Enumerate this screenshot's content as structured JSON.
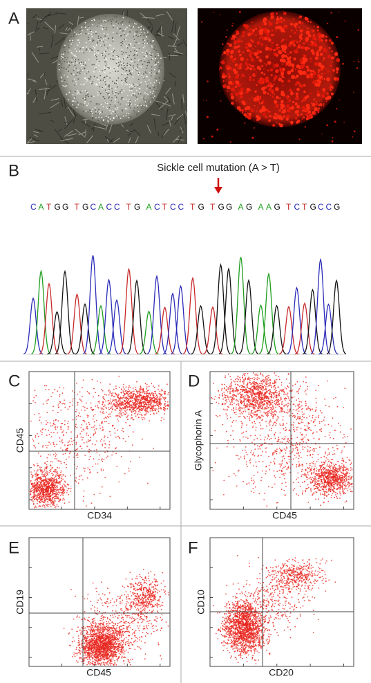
{
  "panels": {
    "A": {
      "label": "A"
    },
    "B": {
      "label": "B",
      "annotation": "Sickle cell mutation (A > T)",
      "sequence": [
        "CATGG",
        "TGCACC",
        "TG",
        "ACTCC",
        "TG",
        "TGG",
        "AG",
        "AAG",
        "TCTGCCG"
      ]
    },
    "C": {
      "label": "C",
      "x_label": "CD34",
      "y_label": "CD45"
    },
    "D": {
      "label": "D",
      "x_label": "CD45",
      "y_label": "Glycophorin A"
    },
    "E": {
      "label": "E",
      "x_label": "CD45",
      "y_label": "CD19"
    },
    "F": {
      "label": "F",
      "x_label": "CD20",
      "y_label": "CD10"
    }
  }
}
